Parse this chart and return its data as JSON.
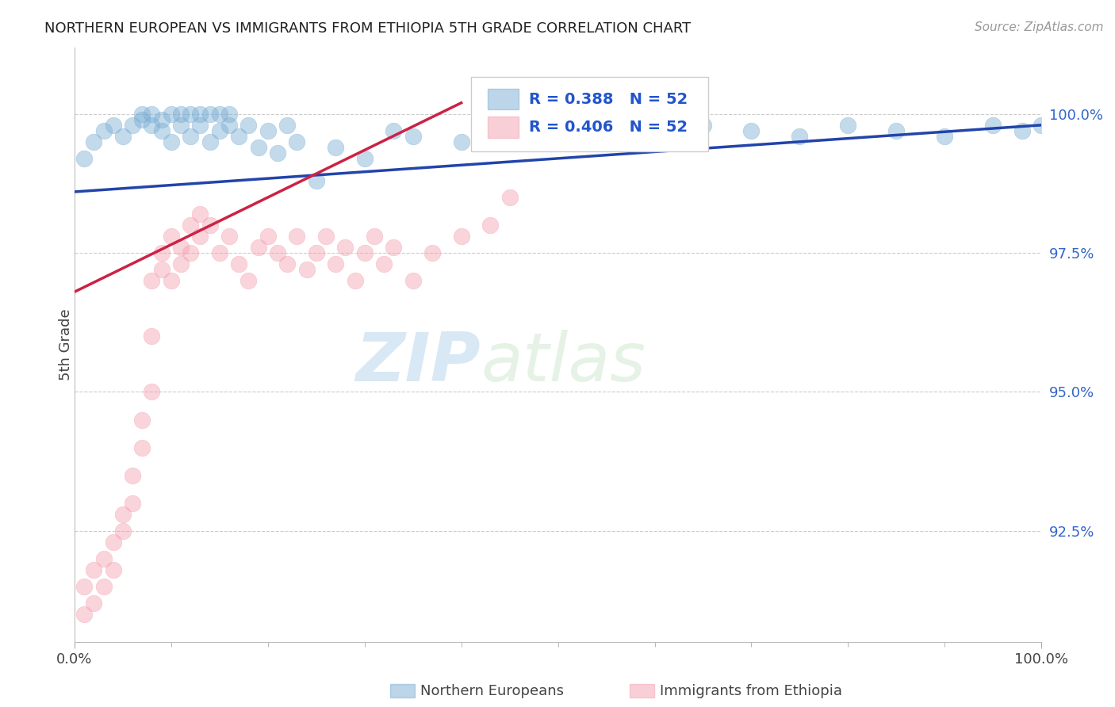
{
  "title": "NORTHERN EUROPEAN VS IMMIGRANTS FROM ETHIOPIA 5TH GRADE CORRELATION CHART",
  "ylabel": "5th Grade",
  "source": "Source: ZipAtlas.com",
  "xmin": 0.0,
  "xmax": 100.0,
  "ymin": 90.5,
  "ymax": 101.2,
  "yticks": [
    92.5,
    95.0,
    97.5,
    100.0
  ],
  "yticklabels": [
    "92.5%",
    "95.0%",
    "97.5%",
    "100.0%"
  ],
  "legend_r_blue": "R = 0.388",
  "legend_n_blue": "N = 52",
  "legend_r_pink": "R = 0.406",
  "legend_n_pink": "N = 52",
  "legend_label_blue": "Northern Europeans",
  "legend_label_pink": "Immigrants from Ethiopia",
  "blue_color": "#7aadd4",
  "pink_color": "#f4a0b0",
  "blue_line_color": "#2244aa",
  "pink_line_color": "#cc2244",
  "watermark_zip": "ZIP",
  "watermark_atlas": "atlas",
  "background_color": "#ffffff",
  "grid_color": "#cccccc",
  "blue_x": [
    1,
    2,
    3,
    4,
    5,
    6,
    7,
    7,
    8,
    8,
    9,
    9,
    10,
    10,
    11,
    11,
    12,
    12,
    13,
    13,
    14,
    14,
    15,
    15,
    16,
    16,
    17,
    18,
    19,
    20,
    21,
    22,
    23,
    25,
    27,
    30,
    33,
    35,
    40,
    45,
    50,
    55,
    60,
    65,
    70,
    75,
    80,
    85,
    90,
    95,
    98,
    100
  ],
  "blue_y": [
    99.2,
    99.5,
    99.7,
    99.8,
    99.6,
    99.8,
    99.9,
    100.0,
    99.8,
    100.0,
    99.7,
    99.9,
    99.5,
    100.0,
    99.8,
    100.0,
    99.6,
    100.0,
    99.8,
    100.0,
    99.5,
    100.0,
    99.7,
    100.0,
    99.8,
    100.0,
    99.6,
    99.8,
    99.4,
    99.7,
    99.3,
    99.8,
    99.5,
    98.8,
    99.4,
    99.2,
    99.7,
    99.6,
    99.5,
    99.7,
    99.8,
    99.7,
    99.5,
    99.8,
    99.7,
    99.6,
    99.8,
    99.7,
    99.6,
    99.8,
    99.7,
    99.8
  ],
  "pink_x": [
    1,
    1,
    2,
    2,
    3,
    3,
    4,
    4,
    5,
    5,
    6,
    6,
    7,
    7,
    8,
    8,
    8,
    9,
    9,
    10,
    10,
    11,
    11,
    12,
    12,
    13,
    13,
    14,
    15,
    16,
    17,
    18,
    19,
    20,
    21,
    22,
    23,
    24,
    25,
    26,
    27,
    28,
    29,
    30,
    31,
    32,
    33,
    35,
    37,
    40,
    43,
    45
  ],
  "pink_y": [
    91.0,
    91.5,
    91.2,
    91.8,
    91.5,
    92.0,
    92.3,
    91.8,
    92.5,
    92.8,
    93.0,
    93.5,
    94.0,
    94.5,
    95.0,
    96.0,
    97.0,
    97.2,
    97.5,
    97.0,
    97.8,
    97.3,
    97.6,
    97.5,
    98.0,
    97.8,
    98.2,
    98.0,
    97.5,
    97.8,
    97.3,
    97.0,
    97.6,
    97.8,
    97.5,
    97.3,
    97.8,
    97.2,
    97.5,
    97.8,
    97.3,
    97.6,
    97.0,
    97.5,
    97.8,
    97.3,
    97.6,
    97.0,
    97.5,
    97.8,
    98.0,
    98.5
  ],
  "blue_trendline_x": [
    0,
    100
  ],
  "blue_trendline_y": [
    98.6,
    99.8
  ],
  "pink_trendline_x": [
    0,
    40
  ],
  "pink_trendline_y": [
    96.8,
    100.2
  ]
}
